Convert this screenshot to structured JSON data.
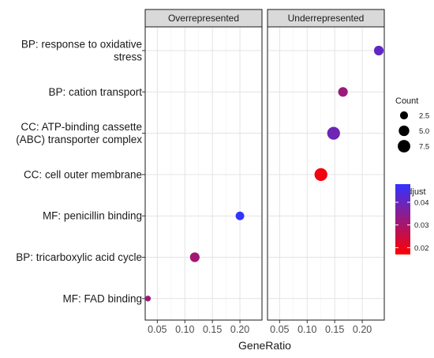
{
  "chart_data": {
    "type": "scatter",
    "xlabel": "GeneRatio",
    "x_ticks": [
      0.05,
      0.1,
      0.15,
      0.2
    ],
    "x_tick_labels": [
      "0.05",
      "0.10",
      "0.15",
      "0.20"
    ],
    "xlim": [
      0.028,
      0.24
    ],
    "grid": true,
    "categories": [
      "BP: response to oxidative\nstress",
      "BP: cation transport",
      "CC: ATP-binding cassette\n(ABC) transporter complex",
      "CC: cell outer membrane",
      "MF: penicillin binding",
      "BP: tricarboxylic acid cycle",
      "MF: FAD binding"
    ],
    "panels": [
      {
        "name": "Overrepresented",
        "points": [
          {
            "category": "MF: penicillin binding",
            "x": 0.2,
            "count": 3,
            "p_adjust": 0.048
          },
          {
            "category": "BP: tricarboxylic acid cycle",
            "x": 0.118,
            "count": 4,
            "p_adjust": 0.031
          },
          {
            "category": "MF: FAD binding",
            "x": 0.033,
            "count": 1,
            "p_adjust": 0.032
          }
        ]
      },
      {
        "name": "Underrepresented",
        "points": [
          {
            "category": "BP: response to oxidative\nstress",
            "x": 0.23,
            "count": 4,
            "p_adjust": 0.041
          },
          {
            "category": "BP: cation transport",
            "x": 0.165,
            "count": 4,
            "p_adjust": 0.032
          },
          {
            "category": "CC: ATP-binding cassette\n(ABC) transporter complex",
            "x": 0.148,
            "count": 8,
            "p_adjust": 0.039
          },
          {
            "category": "CC: cell outer membrane",
            "x": 0.125,
            "count": 8,
            "p_adjust": 0.019
          }
        ]
      }
    ],
    "size_legend": {
      "title": "Count",
      "values": [
        2.5,
        5.0,
        7.5
      ],
      "labels": [
        "2.5",
        "5.0",
        "7.5"
      ]
    },
    "color_legend": {
      "title": "p.adjust",
      "ticks": [
        0.04,
        0.03,
        0.02
      ],
      "tick_labels": [
        "0.04",
        "0.03",
        "0.02"
      ],
      "range": [
        0.017,
        0.048
      ],
      "low_color": "#ff0000",
      "high_color": "#3333ff"
    }
  }
}
